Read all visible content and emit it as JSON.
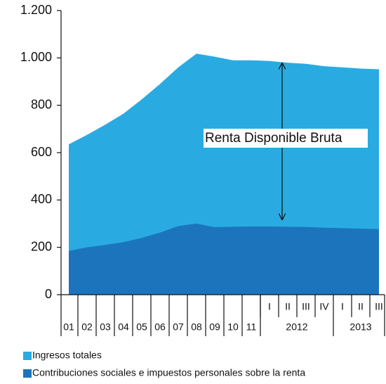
{
  "chart_data": {
    "type": "area",
    "categories": [
      "01",
      "02",
      "03",
      "04",
      "05",
      "06",
      "07",
      "08",
      "09",
      "10",
      "11",
      "I",
      "II",
      "III",
      "IV",
      "I",
      "II",
      "III"
    ],
    "x_groups": [
      "2012",
      "2013"
    ],
    "series": [
      {
        "name": "Ingresos totales",
        "color": "#29abe2",
        "values": [
          635,
          675,
          718,
          765,
          825,
          890,
          960,
          1018,
          1005,
          990,
          990,
          987,
          980,
          975,
          965,
          960,
          955,
          952
        ]
      },
      {
        "name": "Contribuciones sociales e impuestos personales sobre la renta",
        "color": "#1c75bc",
        "values": [
          185,
          200,
          210,
          222,
          240,
          262,
          290,
          300,
          285,
          287,
          288,
          288,
          287,
          286,
          283,
          281,
          279,
          277
        ]
      }
    ],
    "annotation": "Renta Disponible Bruta",
    "ylim": [
      0,
      1200
    ],
    "yticks": [
      0,
      200,
      400,
      600,
      800,
      {
        "value": 1000,
        "label": "1.000"
      },
      {
        "value": 1200,
        "label": "1.200"
      }
    ]
  }
}
